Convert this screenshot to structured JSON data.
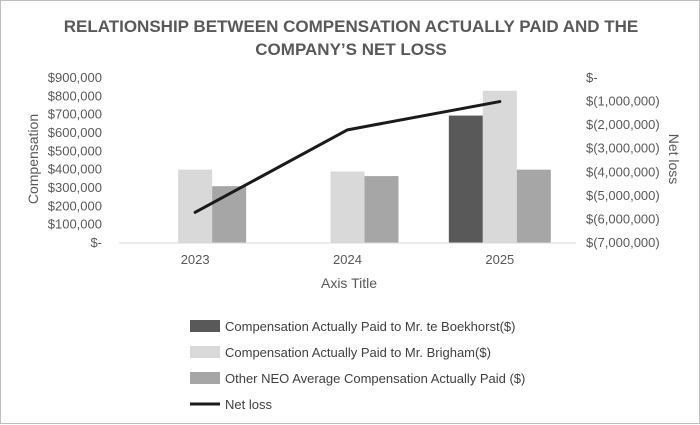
{
  "chart_data": {
    "type": "bar",
    "title_lines": [
      "RELATIONSHIP BETWEEN COMPENSATION ACTUALLY PAID AND THE",
      "COMPANY’S NET LOSS"
    ],
    "xlabel": "Axis Title",
    "ylabel": "Compensation",
    "y2label": "Net loss",
    "categories": [
      "2023",
      "2024",
      "2025"
    ],
    "ylim": [
      0,
      900000
    ],
    "y2lim": [
      -7000000,
      0
    ],
    "y_ticks": [
      "$-",
      "$100,000",
      "$200,000",
      "$300,000",
      "$400,000",
      "$500,000",
      "$600,000",
      "$700,000",
      "$800,000",
      "$900,000"
    ],
    "y2_ticks": [
      "$-",
      "$(1,000,000)",
      "$(2,000,000)",
      "$(3,000,000)",
      "$(4,000,000)",
      "$(5,000,000)",
      "$(6,000,000)",
      "$(7,000,000)"
    ],
    "grid": false,
    "legend_position": "bottom",
    "series": [
      {
        "name": "Compensation Actually Paid to Mr. te Boekhorst($)",
        "type": "bar",
        "axis": "left",
        "color": "#595959",
        "values": [
          0,
          0,
          695000
        ]
      },
      {
        "name": "Compensation Actually Paid to Mr. Brigham($)",
        "type": "bar",
        "axis": "left",
        "color": "#d9d9d9",
        "values": [
          400000,
          390000,
          830000
        ]
      },
      {
        "name": "Other NEO Average Compensation Actually Paid ($)",
        "type": "bar",
        "axis": "left",
        "color": "#a6a6a6",
        "values": [
          310000,
          365000,
          400000
        ]
      },
      {
        "name": "Net loss",
        "type": "line",
        "axis": "right",
        "color": "#1a1a1a",
        "values": [
          -5700000,
          -2200000,
          -1000000
        ]
      }
    ]
  }
}
